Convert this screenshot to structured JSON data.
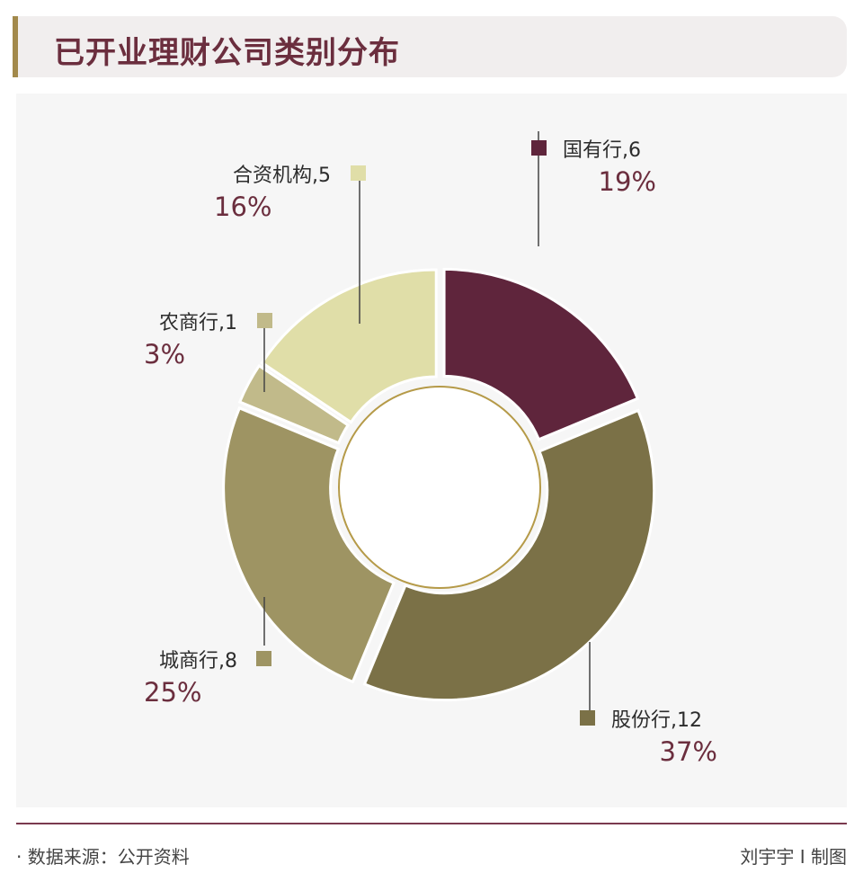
{
  "header": {
    "title": "已开业理财公司类别分布"
  },
  "chart_data": {
    "type": "pie",
    "donut": true,
    "slices": [
      {
        "label": "国有行,6",
        "category": "国有行",
        "value": 6,
        "percent_label": "19%",
        "color": "#5f253c"
      },
      {
        "label": "股份行,12",
        "category": "股份行",
        "value": 12,
        "percent_label": "37%",
        "color": "#7b7147"
      },
      {
        "label": "城商行,8",
        "category": "城商行",
        "value": 8,
        "percent_label": "25%",
        "color": "#9e9463"
      },
      {
        "label": "农商行,1",
        "category": "农商行",
        "value": 1,
        "percent_label": "3%",
        "color": "#c1ba8a"
      },
      {
        "label": "合资机构,5",
        "category": "合资机构",
        "value": 5,
        "percent_label": "16%",
        "color": "#e0dea8"
      }
    ]
  },
  "footer": {
    "source": "· 数据来源：公开资料",
    "credit": "刘宇宇 I 制图"
  }
}
